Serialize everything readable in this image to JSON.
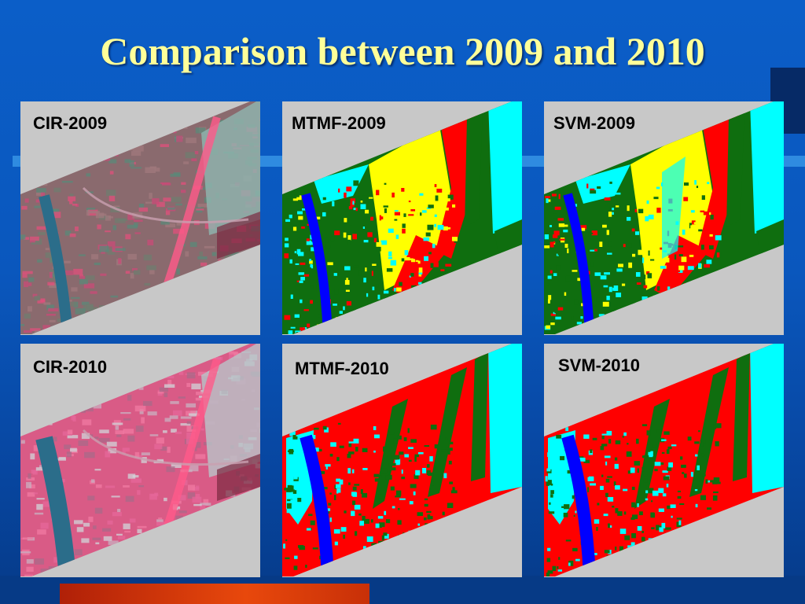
{
  "slide": {
    "title": "Comparison between 2009 and 2010"
  },
  "panels": [
    {
      "label": "CIR-2009",
      "kind": "cir",
      "year": "2009"
    },
    {
      "label": "MTMF-2009",
      "kind": "mtmf",
      "year": "2009"
    },
    {
      "label": "SVM-2009",
      "kind": "svm",
      "year": "2009"
    },
    {
      "label": "CIR-2010",
      "kind": "cir",
      "year": "2010"
    },
    {
      "label": "MTMF-2010",
      "kind": "mtmf",
      "year": "2010"
    },
    {
      "label": "SVM-2010",
      "kind": "svm",
      "year": "2010"
    }
  ],
  "colors": {
    "background": "#0a57bd",
    "title": "#ffff99",
    "panel_bg": "#c8c8c8",
    "class_green": "#0f6e0f",
    "class_red": "#ff0000",
    "class_yellow": "#ffff00",
    "class_cyan": "#00ffff",
    "class_blue": "#0000ff",
    "cir_pink": "#e0507c",
    "accent_bar": "#e0400a"
  }
}
